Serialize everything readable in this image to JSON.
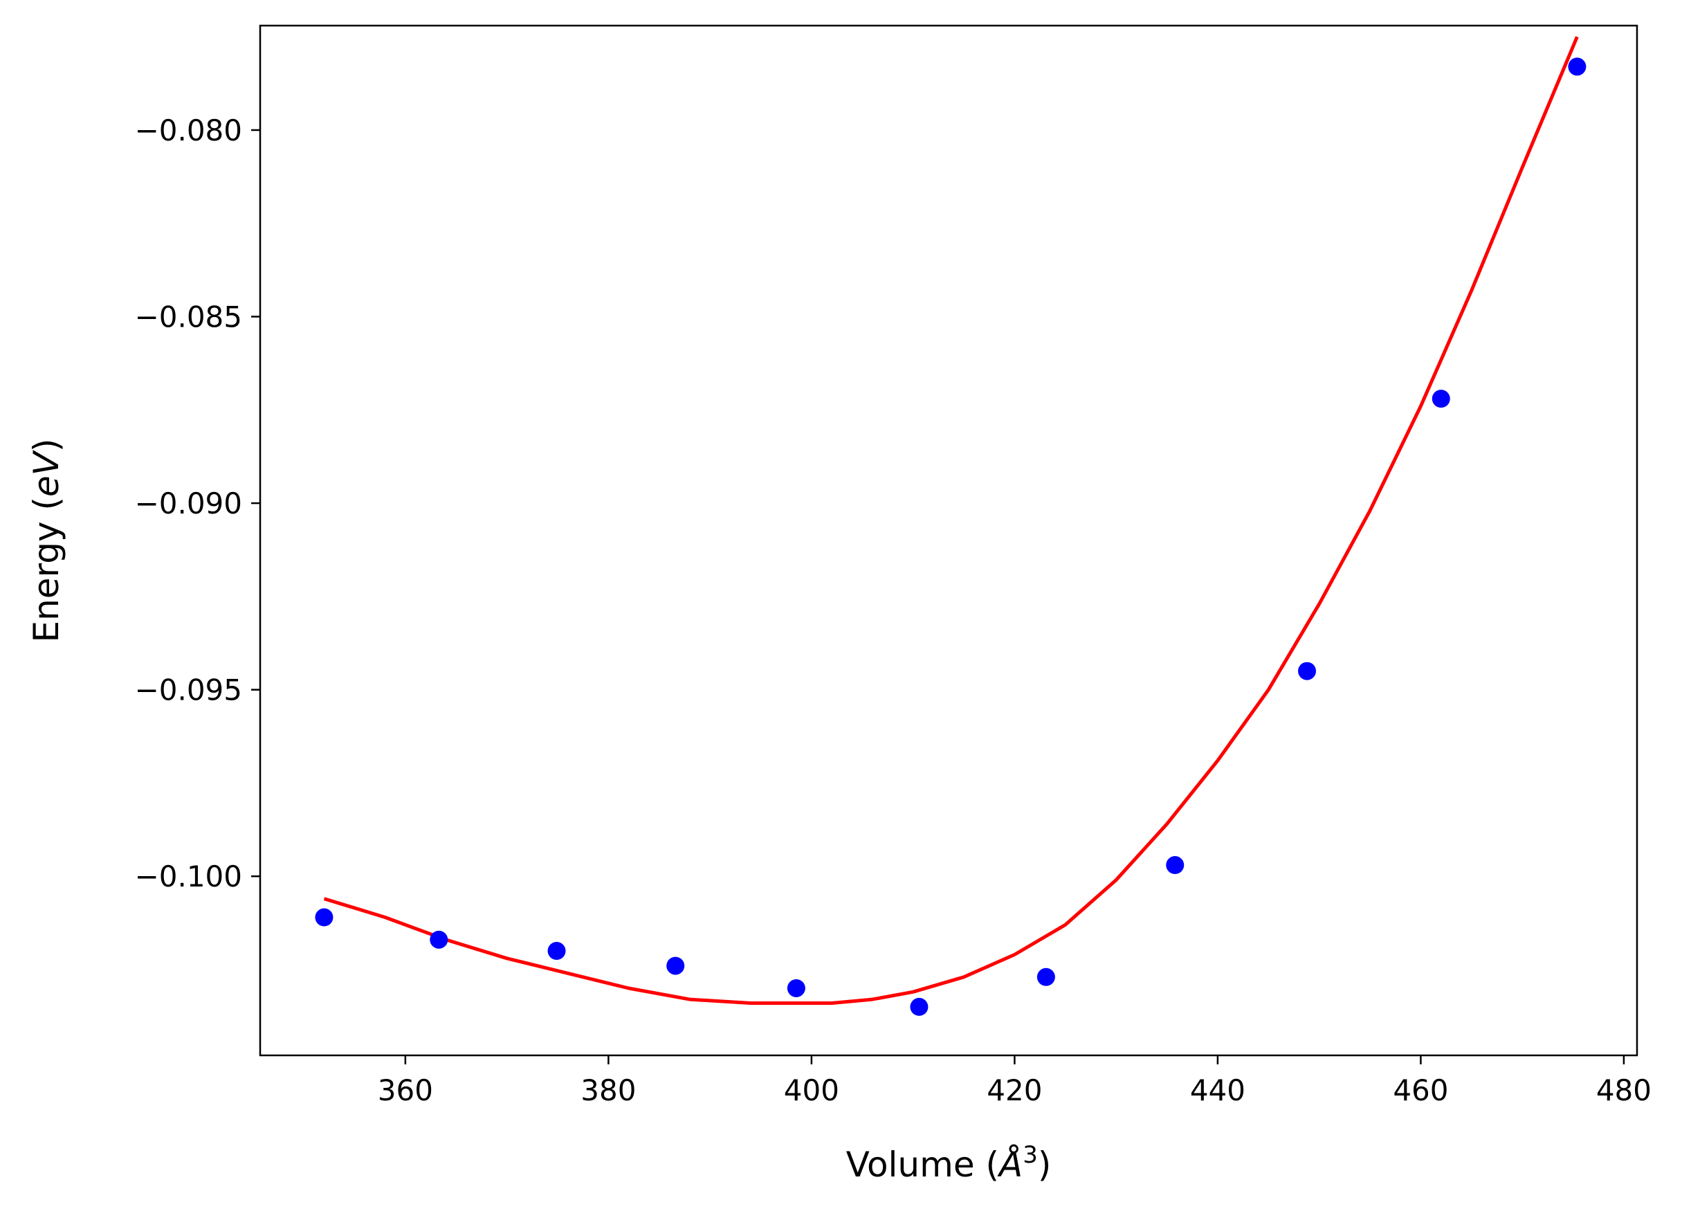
{
  "chart_data": {
    "type": "scatter",
    "xlabel": {
      "prefix": "Volume (",
      "symbol": "Å",
      "exponent": "3",
      "suffix": ")"
    },
    "ylabel": {
      "prefix": "Energy (",
      "unit": "eV",
      "suffix": ")"
    },
    "xlim": [
      345.7,
      481.3
    ],
    "ylim": [
      -0.1048,
      -0.0772
    ],
    "xticks": [
      360,
      380,
      400,
      420,
      440,
      460,
      480
    ],
    "xtick_labels": [
      "360",
      "380",
      "400",
      "420",
      "440",
      "460",
      "480"
    ],
    "yticks": [
      -0.08,
      -0.085,
      -0.09,
      -0.095,
      -0.1
    ],
    "ytick_labels": [
      "−0.080",
      "−0.085",
      "−0.090",
      "−0.095",
      "−0.100"
    ],
    "grid": false,
    "series": [
      {
        "kind": "points",
        "color": "#0000ff",
        "x": [
          352.0,
          363.3,
          374.9,
          386.6,
          398.5,
          410.6,
          423.1,
          435.8,
          448.8,
          462.0,
          475.4
        ],
        "y": [
          -0.1011,
          -0.1017,
          -0.102,
          -0.1024,
          -0.103,
          -0.1035,
          -0.1027,
          -0.0997,
          -0.0945,
          -0.0872,
          -0.0783
        ]
      },
      {
        "kind": "fit-line",
        "color": "#ff0000",
        "x": [
          352.0,
          358.0,
          364.0,
          370.0,
          376.0,
          382.0,
          388.0,
          394.0,
          398.0,
          402.0,
          406.0,
          410.0,
          415.0,
          420.0,
          425.0,
          430.0,
          435.0,
          440.0,
          445.0,
          450.0,
          455.0,
          460.0,
          465.0,
          470.0,
          475.4
        ],
        "y": [
          -0.1006,
          -0.1011,
          -0.1017,
          -0.1022,
          -0.1026,
          -0.103,
          -0.1033,
          -0.1034,
          -0.1034,
          -0.1034,
          -0.1033,
          -0.1031,
          -0.1027,
          -0.1021,
          -0.1013,
          -0.1001,
          -0.0986,
          -0.0969,
          -0.095,
          -0.0927,
          -0.0902,
          -0.0874,
          -0.0843,
          -0.081,
          -0.0775
        ]
      }
    ]
  }
}
